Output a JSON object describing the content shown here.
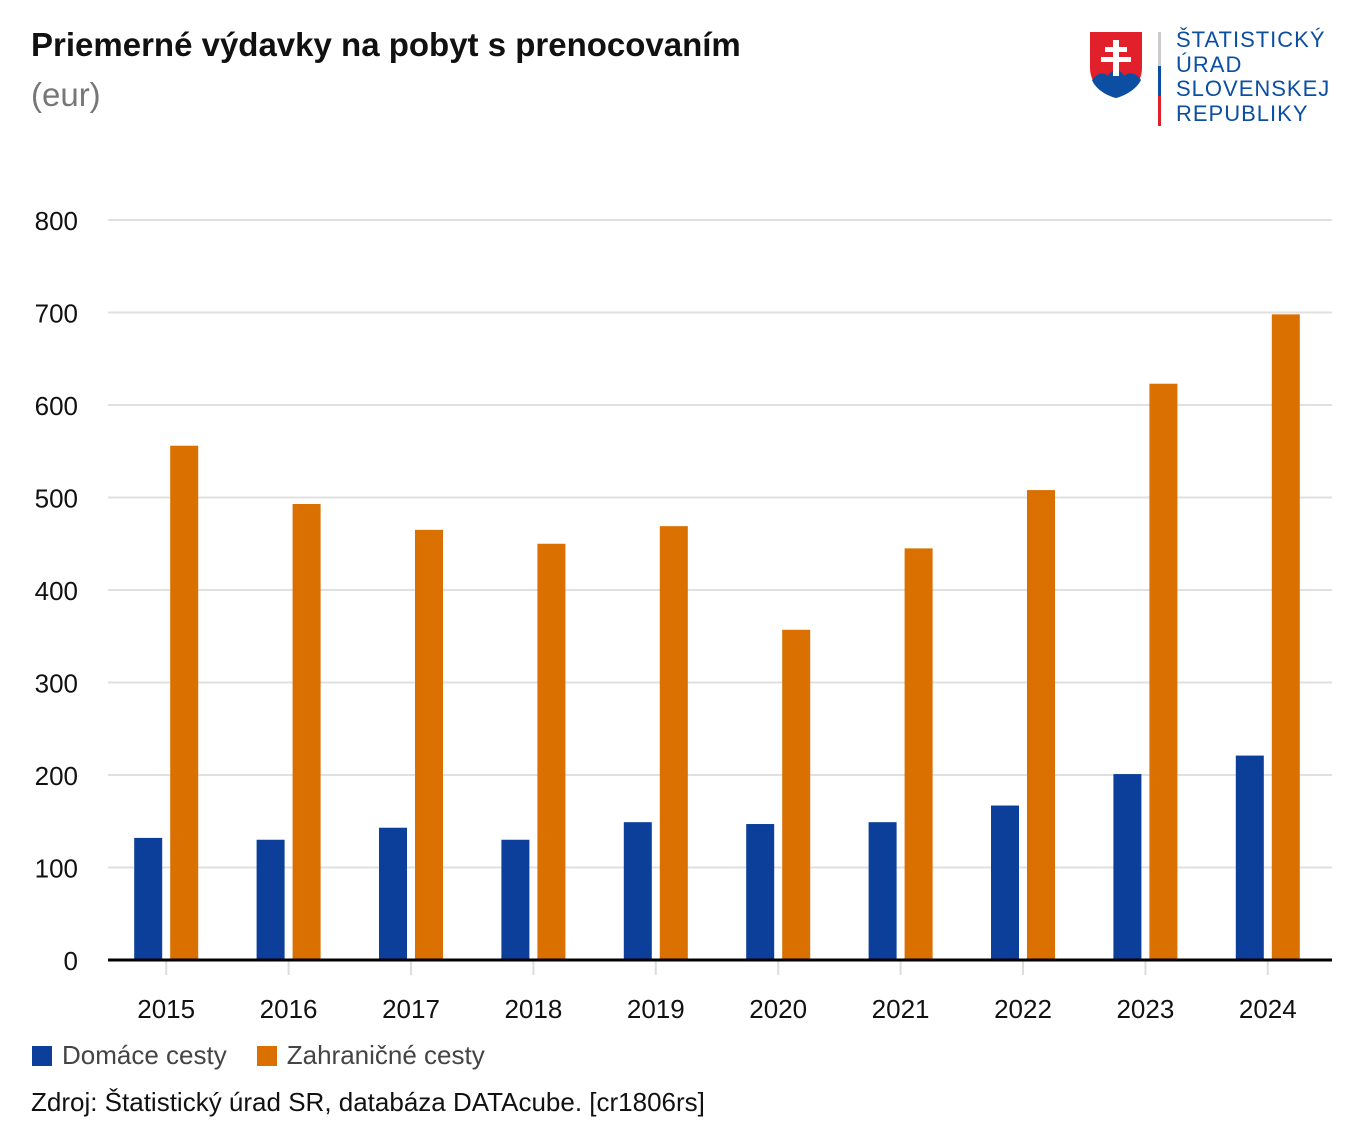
{
  "header": {
    "title": "Priemerné výdavky na pobyt s prenocovaním",
    "subtitle": "(eur)"
  },
  "logo": {
    "lines": [
      "ŠTATISTICKÝ",
      "ÚRAD",
      "SLOVENSKEJ",
      "REPUBLIKY"
    ]
  },
  "chart_data": {
    "type": "bar",
    "title": "Priemerné výdavky na pobyt s prenocovaním",
    "ylabel": "eur",
    "xlabel": "",
    "ylim": [
      0,
      800
    ],
    "yticks": [
      0,
      100,
      200,
      300,
      400,
      500,
      600,
      700,
      800
    ],
    "grid": true,
    "legend_position": "bottom-left",
    "categories": [
      "2015",
      "2016",
      "2017",
      "2018",
      "2019",
      "2020",
      "2021",
      "2022",
      "2023",
      "2024"
    ],
    "series": [
      {
        "name": "Domáce cesty",
        "color": "#0b3f9a",
        "values": [
          132,
          130,
          143,
          130,
          149,
          147,
          149,
          167,
          201,
          221
        ]
      },
      {
        "name": "Zahraničné cesty",
        "color": "#d97000",
        "values": [
          556,
          493,
          465,
          450,
          469,
          357,
          445,
          508,
          623,
          698
        ]
      }
    ]
  },
  "footer": {
    "source": "Zdroj: Štatistický úrad SR, databáza DATAcube. [cr1806rs]"
  }
}
